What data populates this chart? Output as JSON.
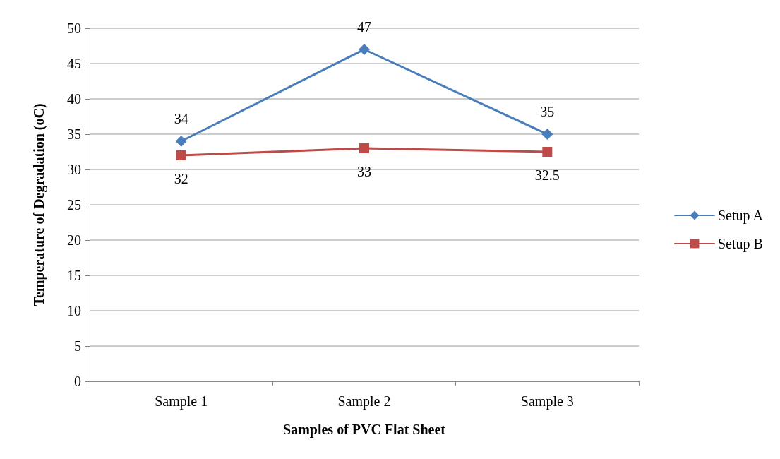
{
  "chart_data": {
    "type": "line",
    "xlabel": "Samples of PVC Flat Sheet",
    "ylabel": "Temperature of Degradation (oC)",
    "categories": [
      "Sample 1",
      "Sample 2",
      "Sample 3"
    ],
    "series": [
      {
        "name": "Setup A",
        "color": "#4a7ebb",
        "values": [
          34,
          47,
          35
        ],
        "marker": "diamond"
      },
      {
        "name": "Setup B",
        "color": "#be4b48",
        "values": [
          32,
          33,
          32.5
        ],
        "marker": "square"
      }
    ],
    "ylim": [
      0,
      50
    ],
    "yticks": [
      0,
      5,
      10,
      15,
      20,
      25,
      30,
      35,
      40,
      45,
      50
    ],
    "grid": "y",
    "legend": "right",
    "data_labels": true,
    "line_style": "solid"
  }
}
